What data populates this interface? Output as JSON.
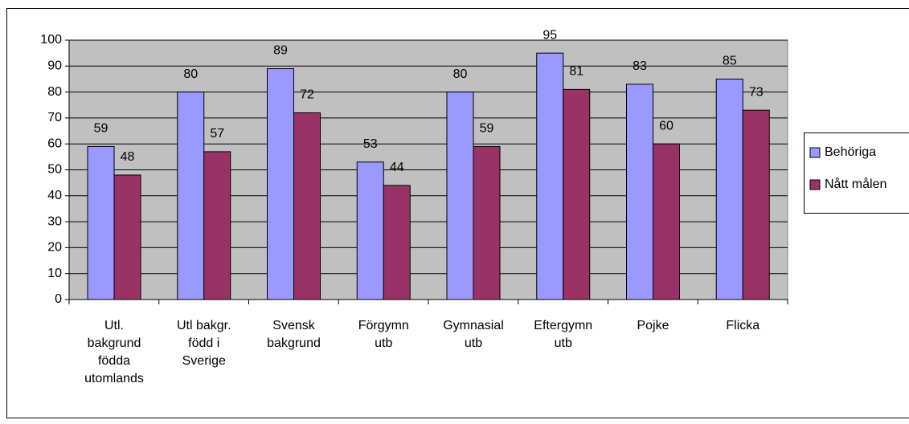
{
  "chart_data": {
    "type": "bar",
    "categories": [
      "Utl.\nbakgrund\nfödda\nutomlands",
      "Utl bakgr.\nfödd i\nSverige",
      "Svensk\nbakgrund",
      "Förgymn\nutb",
      "Gymnasial\nutb",
      "Eftergymn\nutb",
      "Pojke",
      "Flicka"
    ],
    "series": [
      {
        "name": "Behöriga",
        "color": "#9999ff",
        "values": [
          59,
          80,
          89,
          53,
          80,
          95,
          83,
          85
        ]
      },
      {
        "name": "Nått målen",
        "color": "#993366",
        "values": [
          48,
          57,
          72,
          44,
          59,
          81,
          60,
          73
        ]
      }
    ],
    "ylim": [
      0,
      100
    ],
    "yticks": [
      0,
      10,
      20,
      30,
      40,
      50,
      60,
      70,
      80,
      90,
      100
    ],
    "grid": true,
    "legend": "right",
    "plot_background": "#c0c0c0"
  }
}
